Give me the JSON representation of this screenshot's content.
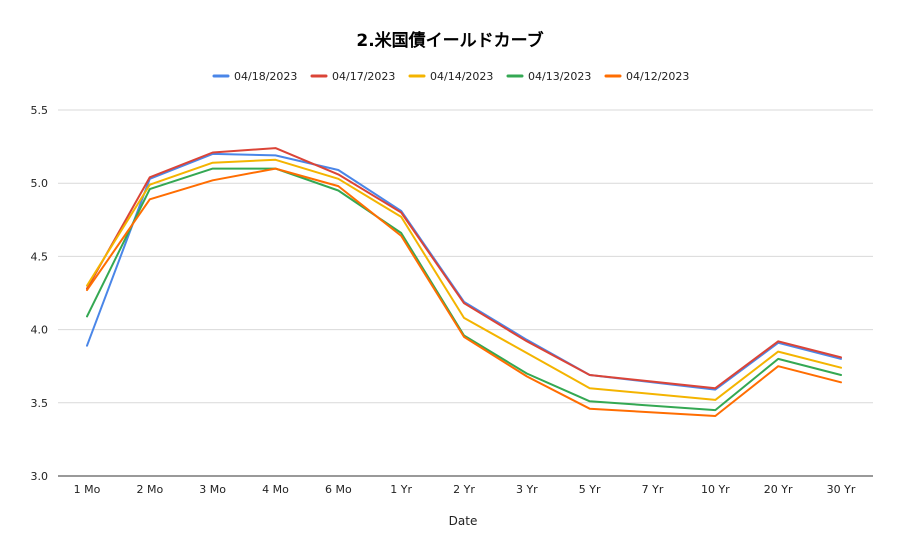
{
  "chart_data": {
    "type": "line",
    "title": "2.米国債イールドカーブ",
    "xlabel": "Date",
    "ylabel": "",
    "ylim": [
      3.0,
      5.5
    ],
    "yticks": [
      "3.0",
      "3.5",
      "4.0",
      "4.5",
      "5.0",
      "5.5"
    ],
    "categories": [
      "1 Mo",
      "2 Mo",
      "3 Mo",
      "4 Mo",
      "6 Mo",
      "1 Yr",
      "2 Yr",
      "3 Yr",
      "5 Yr",
      "7 Yr",
      "10 Yr",
      "20 Yr",
      "30 Yr"
    ],
    "grid": true,
    "legend_position": "top",
    "series": [
      {
        "name": "04/18/2023",
        "color": "#4a86e8",
        "values": [
          3.89,
          5.03,
          5.2,
          5.19,
          5.09,
          4.81,
          4.19,
          3.93,
          3.69,
          null,
          3.59,
          3.91,
          3.8
        ]
      },
      {
        "name": "04/17/2023",
        "color": "#db4437",
        "values": [
          4.28,
          5.04,
          5.21,
          5.24,
          5.06,
          4.8,
          4.18,
          3.92,
          3.69,
          null,
          3.6,
          3.92,
          3.81
        ]
      },
      {
        "name": "04/14/2023",
        "color": "#f4b400",
        "values": [
          4.3,
          4.99,
          5.14,
          5.16,
          5.03,
          4.77,
          4.08,
          3.84,
          3.6,
          null,
          3.52,
          3.85,
          3.74
        ]
      },
      {
        "name": "04/13/2023",
        "color": "#34a853",
        "values": [
          4.09,
          4.96,
          5.1,
          5.1,
          4.95,
          4.66,
          3.96,
          3.7,
          3.51,
          null,
          3.45,
          3.8,
          3.69
        ]
      },
      {
        "name": "04/12/2023",
        "color": "#ff6d01",
        "values": [
          4.27,
          4.89,
          5.02,
          5.1,
          4.98,
          4.64,
          3.95,
          3.68,
          3.46,
          null,
          3.41,
          3.75,
          3.64
        ]
      }
    ]
  }
}
